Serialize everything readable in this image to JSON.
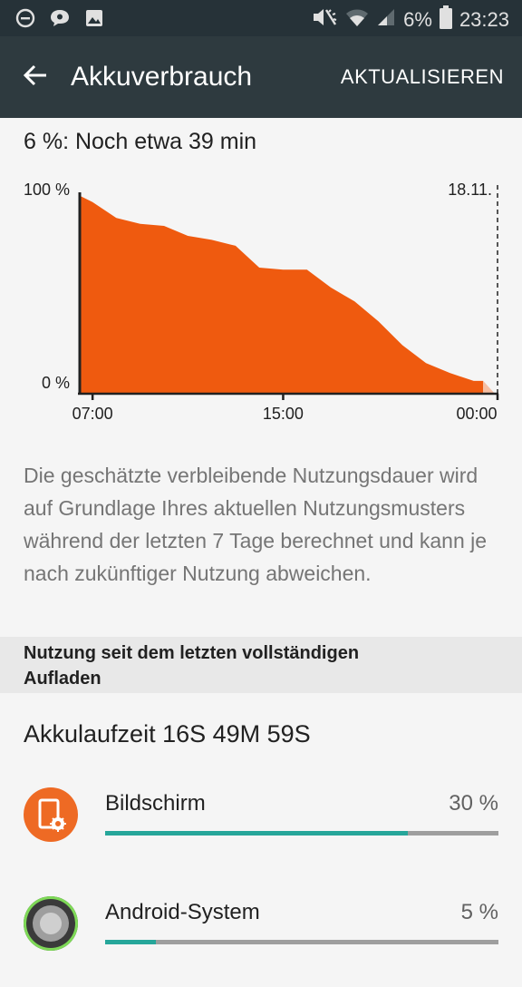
{
  "status_bar": {
    "battery_text": "6%",
    "time": "23:23",
    "left_icons": [
      "minus-circle-icon",
      "chat-icon",
      "image-icon"
    ],
    "right_icons": [
      "mute-icon",
      "wifi-icon",
      "signal-icon",
      "battery-icon"
    ]
  },
  "app_bar": {
    "title": "Akkuverbrauch",
    "action_label": "AKTUALISIEREN"
  },
  "estimate_text": "6 %: Noch etwa 39 min",
  "chart_data": {
    "type": "area",
    "y_max_label": "100 %",
    "y_min_label": "0 %",
    "date_label": "18.11.",
    "x_ticks": [
      "07:00",
      "15:00",
      "00:00"
    ],
    "x_hours": [
      6.5,
      7.0,
      8.0,
      9.0,
      10.0,
      11.0,
      12.0,
      13.0,
      14.0,
      15.0,
      16.0,
      17.0,
      18.0,
      19.0,
      20.0,
      21.0,
      22.0,
      23.0,
      23.4
    ],
    "values": [
      99,
      96,
      88,
      85,
      84,
      79,
      77,
      74,
      63,
      62,
      62,
      53,
      46,
      36,
      24,
      15,
      10,
      6,
      6
    ],
    "x_range": [
      6.5,
      24.0
    ],
    "ylim": [
      0,
      100
    ],
    "fill_color": "#ef5a0f",
    "projection_color": "#f6bfa3"
  },
  "description": "Die geschätzte verbleibende Nutzungsdauer wird auf Grundlage Ihres aktuellen Nutzungsmusters während der letzten 7 Tage berechnet und kann je nach zukünftiger Nutzung abweichen.",
  "section_header": "Nutzung seit dem letzten vollständigen Aufladen",
  "uptime_text": "Akkulaufzeit 16S 49M 59S",
  "usage": [
    {
      "label": "Bildschirm",
      "percent_text": "30 %",
      "fill_fraction": 0.77,
      "icon": "screen-settings-icon"
    },
    {
      "label": "Android-System",
      "percent_text": "5 %",
      "fill_fraction": 0.13,
      "icon": "android-system-icon"
    }
  ]
}
